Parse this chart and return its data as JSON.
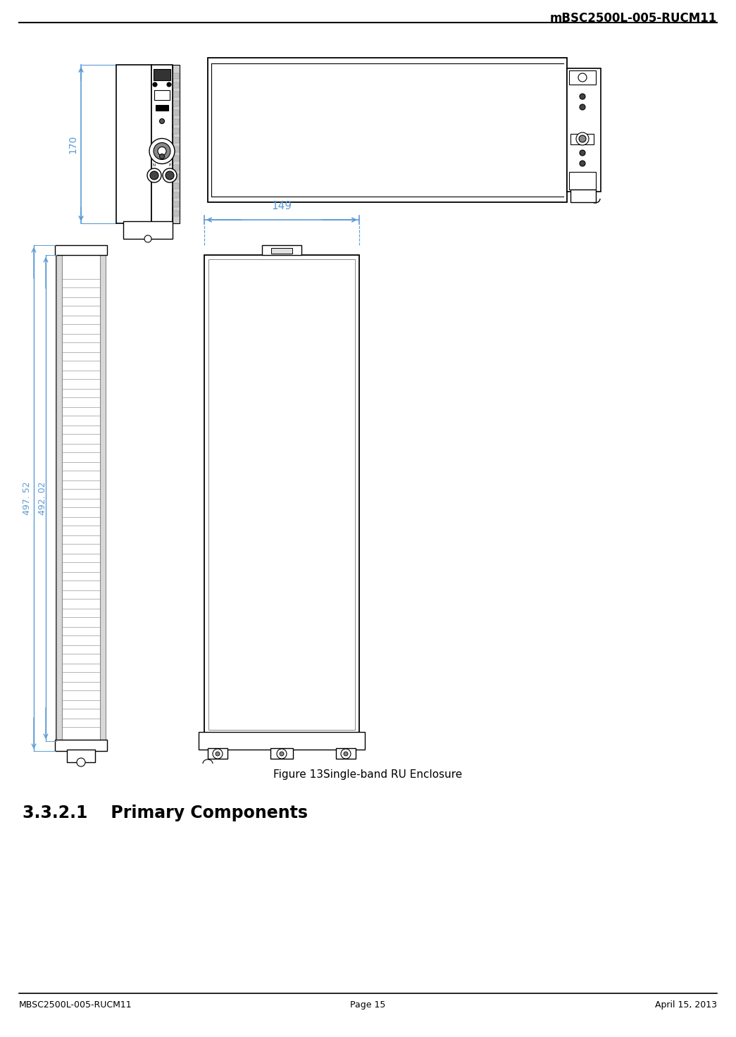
{
  "header_text": "mBSC2500L-005-RUCM11",
  "footer_left": "MBSC2500L-005-RUCM11",
  "footer_right": "April 15, 2013",
  "footer_center": "Page 15",
  "figure_caption": "Figure 13Single-band RU Enclosure",
  "section_heading": "3.3.2.1    Primary Components",
  "bg_color": "#ffffff",
  "line_color": "#000000",
  "blue_color": "#5b9bd5"
}
